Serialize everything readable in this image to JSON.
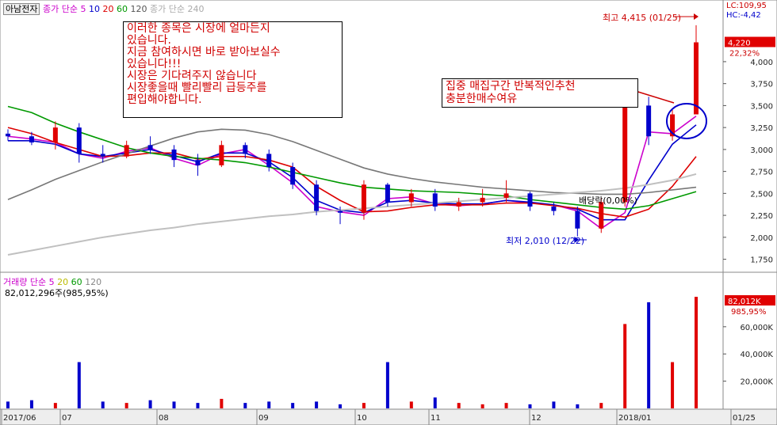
{
  "header": {
    "stock_name": "아남전자",
    "price_ma_label": "종가 단순",
    "price_ma_periods": [
      "5",
      "10",
      "20",
      "60",
      "120"
    ],
    "price_ma_colors": [
      "#cc00cc",
      "#0000cc",
      "#dd0000",
      "#009900",
      "#888888"
    ],
    "extra_ma_label": "종가 단순 240",
    "lc_label": "LC:109,95",
    "hc_label": "HC:-4,42"
  },
  "volume_header": {
    "label": "거래량",
    "ma_label": "단순",
    "ma_periods": [
      "5",
      "20",
      "60",
      "120"
    ],
    "ma_colors": [
      "#cc00cc",
      "#cccc00",
      "#009900",
      "#888888"
    ],
    "summary": "82,012,296주(985,95%)"
  },
  "annotations": {
    "promo_text": "이러한 종목은 시장에 얼마든지\n있습니다.\n지금 참여하시면 바로 받아보실수\n있습니다!!!\n시장은 기다려주지 않습니다\n시장좋을때 빨리빨리 급등주를\n편입해야합니다.",
    "zone_text": "집중 매집구간 반복적인추천\n충분한매수여유",
    "high_label": "최고 4,415 (01/25)",
    "low_label": "최저 2,010 (12/22)",
    "dividend_label": "배당락(0,00%)"
  },
  "chart_data": {
    "type": "candlestick",
    "price_axis": {
      "ylim": [
        1620,
        4540
      ],
      "ticks": [
        "4,000",
        "3,750",
        "3,500",
        "3,250",
        "3,000",
        "2,750",
        "2,500",
        "2,250",
        "2,000",
        "1,750"
      ],
      "current_price": "4,220",
      "current_change": "22,32%"
    },
    "volume_axis": {
      "ylim": [
        0,
        82000000
      ],
      "ticks": [
        "60,000K",
        "40,000K",
        "20,000K"
      ],
      "current_volume": "82,012K",
      "current_ratio": "985,95%"
    },
    "x_labels": [
      "2017/06",
      "07",
      "08",
      "09",
      "10",
      "11",
      "12",
      "2018/01",
      "01/25"
    ],
    "ma_lines": [
      {
        "name": "5",
        "color": "#cc00cc",
        "values": [
          3150,
          3120,
          3080,
          2950,
          2900,
          2980,
          3020,
          2900,
          2820,
          2950,
          3000,
          2820,
          2620,
          2350,
          2290,
          2250,
          2440,
          2460,
          2380,
          2360,
          2380,
          2420,
          2390,
          2370,
          2300,
          2100,
          2280,
          3200,
          3180,
          3380
        ]
      },
      {
        "name": "10",
        "color": "#0000cc",
        "values": [
          3100,
          3100,
          3060,
          2950,
          2920,
          2960,
          3000,
          2930,
          2860,
          2960,
          2960,
          2860,
          2680,
          2420,
          2310,
          2280,
          2400,
          2420,
          2390,
          2380,
          2380,
          2420,
          2400,
          2370,
          2320,
          2200,
          2200,
          2650,
          3060,
          3280
        ]
      },
      {
        "name": "20",
        "color": "#dd0000",
        "values": [
          3250,
          3180,
          3080,
          3000,
          2920,
          2930,
          2960,
          2960,
          2890,
          2920,
          2920,
          2880,
          2800,
          2580,
          2420,
          2290,
          2300,
          2340,
          2370,
          2370,
          2370,
          2390,
          2390,
          2360,
          2330,
          2270,
          2230,
          2320,
          2580,
          2920
        ]
      },
      {
        "name": "60",
        "color": "#009900",
        "values": [
          3490,
          3420,
          3300,
          3200,
          3110,
          3020,
          2960,
          2920,
          2900,
          2880,
          2850,
          2800,
          2740,
          2680,
          2620,
          2570,
          2550,
          2530,
          2520,
          2510,
          2490,
          2470,
          2430,
          2400,
          2370,
          2340,
          2320,
          2360,
          2440,
          2520
        ]
      },
      {
        "name": "120",
        "color": "#777777",
        "values": [
          2430,
          2540,
          2660,
          2760,
          2860,
          2950,
          3040,
          3130,
          3200,
          3230,
          3220,
          3170,
          3090,
          2990,
          2890,
          2790,
          2720,
          2670,
          2630,
          2600,
          2570,
          2550,
          2530,
          2510,
          2500,
          2490,
          2490,
          2510,
          2540,
          2570
        ]
      },
      {
        "name": "240",
        "color": "#c0c0c0",
        "values": [
          1800,
          1850,
          1900,
          1950,
          2000,
          2040,
          2080,
          2110,
          2150,
          2180,
          2210,
          2240,
          2260,
          2290,
          2310,
          2330,
          2350,
          2370,
          2390,
          2410,
          2430,
          2450,
          2470,
          2490,
          2510,
          2530,
          2560,
          2600,
          2650,
          2720
        ]
      }
    ],
    "candles_ohlc": [
      [
        3180,
        3230,
        3100,
        3150
      ],
      [
        3150,
        3200,
        3050,
        3080
      ],
      [
        3080,
        3320,
        3000,
        3250
      ],
      [
        3250,
        3300,
        2850,
        2950
      ],
      [
        2950,
        3050,
        2850,
        2920
      ],
      [
        2920,
        3100,
        2900,
        3050
      ],
      [
        3050,
        3150,
        2950,
        3000
      ],
      [
        3000,
        3050,
        2800,
        2880
      ],
      [
        2880,
        2950,
        2700,
        2820
      ],
      [
        2820,
        3100,
        2800,
        3050
      ],
      [
        3050,
        3080,
        2900,
        2950
      ],
      [
        2950,
        3000,
        2750,
        2800
      ],
      [
        2800,
        2850,
        2550,
        2600
      ],
      [
        2600,
        2650,
        2250,
        2300
      ],
      [
        2300,
        2350,
        2150,
        2280
      ],
      [
        2280,
        2650,
        2200,
        2600
      ],
      [
        2600,
        2620,
        2350,
        2400
      ],
      [
        2400,
        2550,
        2350,
        2500
      ],
      [
        2500,
        2550,
        2300,
        2350
      ],
      [
        2350,
        2450,
        2300,
        2400
      ],
      [
        2400,
        2550,
        2350,
        2450
      ],
      [
        2450,
        2650,
        2400,
        2500
      ],
      [
        2500,
        2520,
        2300,
        2350
      ],
      [
        2350,
        2400,
        2250,
        2300
      ],
      [
        2300,
        2350,
        2010,
        2100
      ],
      [
        2100,
        2450,
        2050,
        2400
      ],
      [
        2400,
        3750,
        2350,
        3500
      ],
      [
        3500,
        3600,
        3050,
        3150
      ],
      [
        3150,
        3450,
        3100,
        3400
      ],
      [
        3400,
        4415,
        3550,
        4220
      ]
    ],
    "volume_values": [
      5,
      6,
      4,
      34,
      5,
      4,
      6,
      5,
      4,
      7,
      4,
      5,
      4,
      5,
      3,
      4,
      34,
      5,
      8,
      4,
      3,
      4,
      3,
      5,
      3,
      4,
      62,
      78,
      34,
      82
    ]
  }
}
